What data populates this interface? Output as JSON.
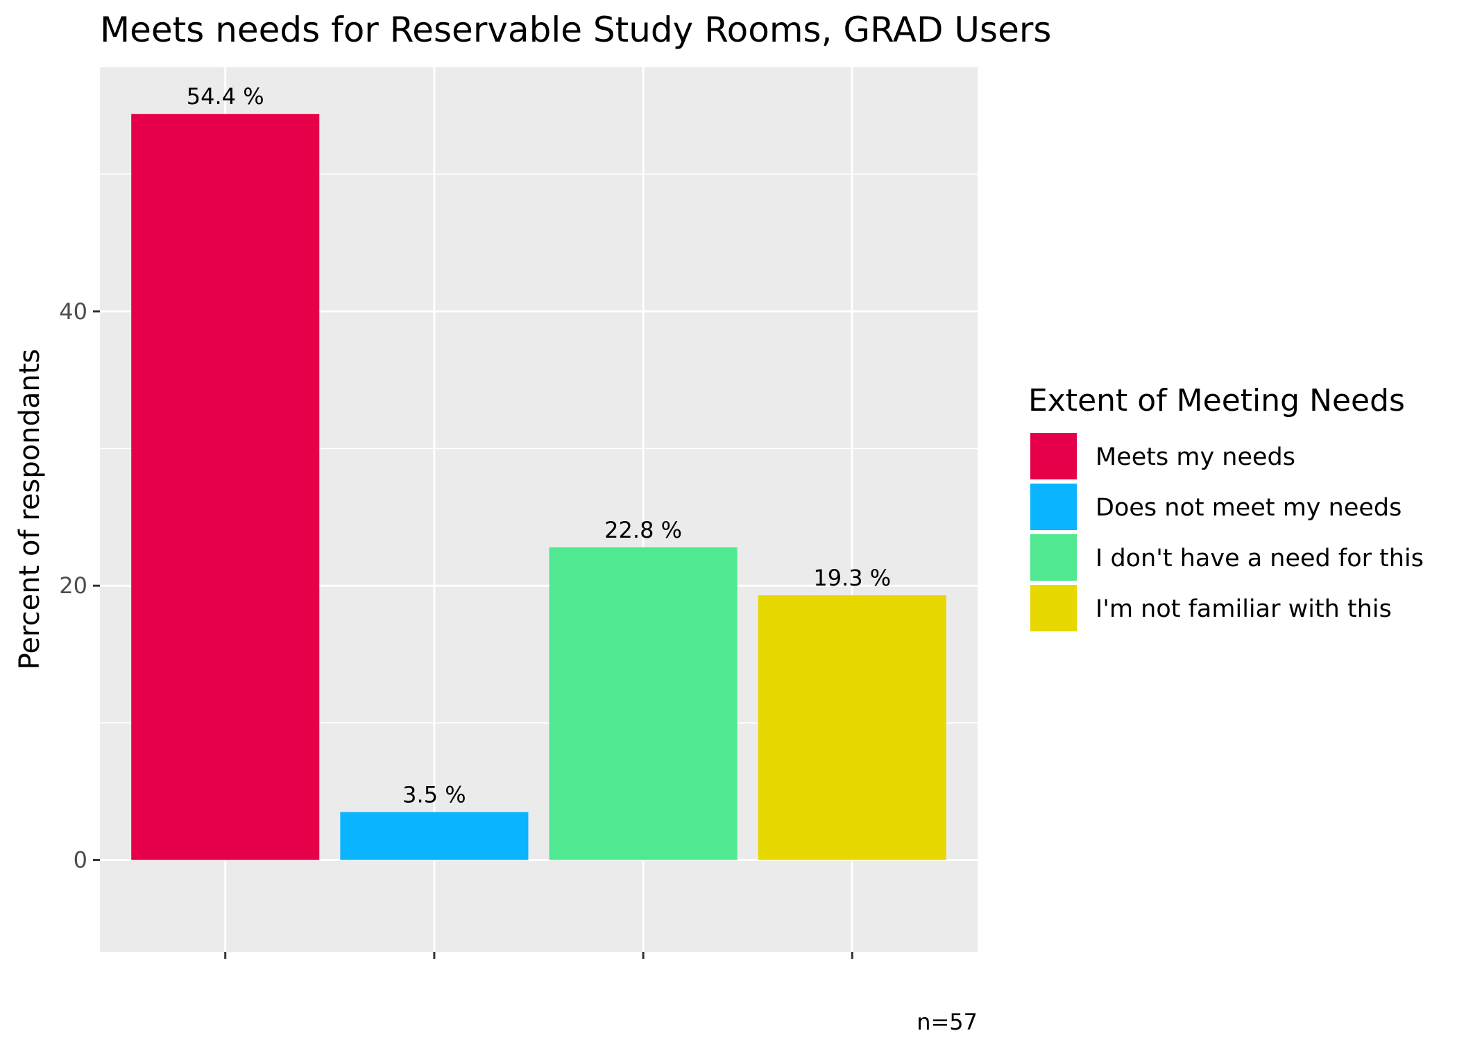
{
  "chart_data": {
    "type": "bar",
    "title": "Meets needs for Reservable Study Rooms, GRAD Users",
    "xlabel": "",
    "ylabel": "Percent of respondants",
    "ylim": [
      -6.7,
      57.8
    ],
    "yticks": [
      0,
      20,
      40
    ],
    "grid": true,
    "categories": [
      "Meets my needs",
      "Does not meet my needs",
      "I don't have a need for this",
      "I'm not familiar with this"
    ],
    "values": [
      54.4,
      3.5,
      22.8,
      19.3
    ],
    "data_labels": [
      "54.4 %",
      "3.5 %",
      "22.8 %",
      "19.3 %"
    ],
    "colors": [
      "#e60049",
      "#0bb4ff",
      "#50e991",
      "#e6d800"
    ],
    "legend": {
      "title": "Extent of Meeting Needs",
      "position": "right",
      "items": [
        "Meets my needs",
        "Does not meet my needs",
        "I don't have a need for this",
        "I'm not familiar with this"
      ]
    },
    "caption": "n=57",
    "panel_background": "#ebebeb",
    "gridline_color": "#ffffff"
  }
}
